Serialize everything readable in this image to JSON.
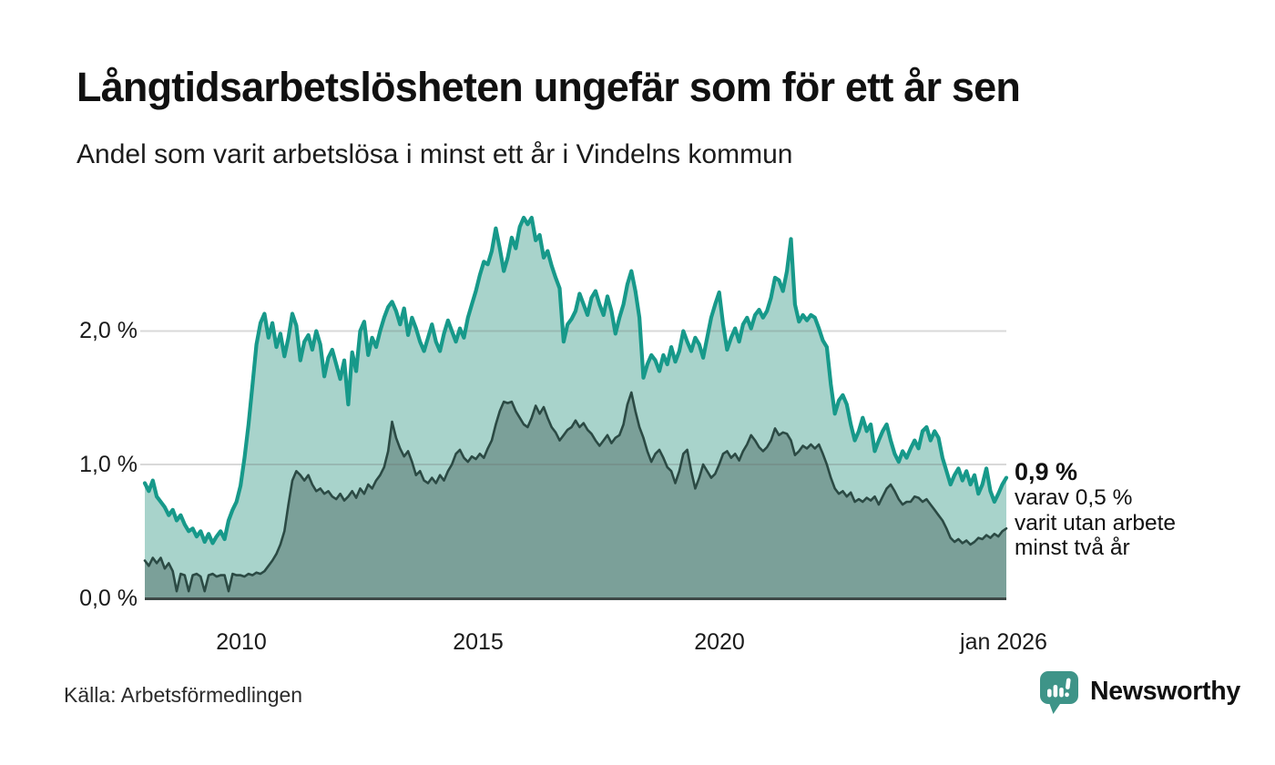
{
  "header": {
    "title": "Långtidsarbetslösheten ungefär som för ett år sen",
    "subtitle": "Andel som varit arbetslösa i minst ett år i Vindelns kommun"
  },
  "colors": {
    "accent_teal": "#17998a",
    "light_fill": "#a8d3cb",
    "dark_line": "#2b4a44",
    "dark_fill": "#7ba099",
    "baseline": "#3d4846",
    "gridline": "rgba(105,105,105,0.25)",
    "brand_teal": "#3e9488"
  },
  "chart_data": {
    "type": "area",
    "title": "Långtidsarbetslösheten ungefär som för ett år sen",
    "subtitle": "Andel som varit arbetslösa i minst ett år i Vindelns kommun",
    "unit": "%",
    "x_start": 2008.0,
    "x_end": 2026.04,
    "ylim": [
      0,
      3
    ],
    "grid": "horizontal",
    "y_gridline_values": [
      1.0,
      2.0
    ],
    "y_tick_labels": [
      "2,0 %",
      "1,0 %",
      "0,0 %"
    ],
    "x_tick_labels": [
      "2010",
      "2015",
      "2020",
      "jan 2026"
    ],
    "x_tick_years": [
      2010,
      2015,
      2020,
      2026.04
    ],
    "legend_position": "none",
    "series": [
      {
        "name": "Andel arbetslösa minst ett år",
        "last_value": 0.9,
        "color": "#17998a",
        "fill": "#a8d3cb",
        "line_width": 4.2,
        "values": [
          0.86,
          0.8,
          0.88,
          0.76,
          0.72,
          0.68,
          0.62,
          0.66,
          0.58,
          0.62,
          0.55,
          0.5,
          0.52,
          0.46,
          0.5,
          0.42,
          0.48,
          0.41,
          0.46,
          0.5,
          0.44,
          0.58,
          0.66,
          0.72,
          0.84,
          1.05,
          1.3,
          1.6,
          1.9,
          2.06,
          2.13,
          1.95,
          2.06,
          1.88,
          1.98,
          1.81,
          1.95,
          2.13,
          2.04,
          1.78,
          1.92,
          1.97,
          1.86,
          2.0,
          1.9,
          1.66,
          1.8,
          1.86,
          1.75,
          1.64,
          1.78,
          1.45,
          1.84,
          1.7,
          2.0,
          2.07,
          1.82,
          1.95,
          1.88,
          2.0,
          2.1,
          2.18,
          2.22,
          2.15,
          2.05,
          2.17,
          1.97,
          2.1,
          2.02,
          1.92,
          1.85,
          1.95,
          2.05,
          1.92,
          1.85,
          1.98,
          2.08,
          2.0,
          1.92,
          2.02,
          1.95,
          2.1,
          2.2,
          2.3,
          2.42,
          2.52,
          2.5,
          2.6,
          2.77,
          2.62,
          2.45,
          2.55,
          2.7,
          2.62,
          2.78,
          2.85,
          2.8,
          2.85,
          2.68,
          2.72,
          2.55,
          2.6,
          2.49,
          2.4,
          2.32,
          1.92,
          2.05,
          2.09,
          2.15,
          2.28,
          2.2,
          2.12,
          2.25,
          2.3,
          2.2,
          2.12,
          2.26,
          2.15,
          1.98,
          2.1,
          2.2,
          2.35,
          2.45,
          2.3,
          2.1,
          1.65,
          1.75,
          1.82,
          1.78,
          1.7,
          1.82,
          1.75,
          1.88,
          1.77,
          1.85,
          2.0,
          1.92,
          1.85,
          1.95,
          1.9,
          1.8,
          1.95,
          2.1,
          2.2,
          2.29,
          2.05,
          1.86,
          1.95,
          2.02,
          1.92,
          2.05,
          2.1,
          2.02,
          2.12,
          2.16,
          2.1,
          2.15,
          2.25,
          2.4,
          2.38,
          2.3,
          2.45,
          2.69,
          2.2,
          2.07,
          2.12,
          2.08,
          2.12,
          2.1,
          2.02,
          1.93,
          1.88,
          1.6,
          1.38,
          1.48,
          1.52,
          1.45,
          1.3,
          1.18,
          1.25,
          1.35,
          1.25,
          1.3,
          1.1,
          1.18,
          1.25,
          1.3,
          1.18,
          1.08,
          1.02,
          1.1,
          1.05,
          1.12,
          1.18,
          1.12,
          1.25,
          1.28,
          1.18,
          1.25,
          1.2,
          1.05,
          0.95,
          0.85,
          0.92,
          0.97,
          0.88,
          0.95,
          0.85,
          0.92,
          0.78,
          0.85,
          0.97,
          0.8,
          0.72,
          0.78,
          0.85,
          0.9
        ]
      },
      {
        "name": "Andel arbetslösa minst två år",
        "last_value": 0.5,
        "color": "#2b4a44",
        "fill": "#7ba099",
        "line_width": 2.6,
        "values": [
          0.28,
          0.24,
          0.3,
          0.26,
          0.3,
          0.22,
          0.26,
          0.2,
          0.05,
          0.18,
          0.17,
          0.05,
          0.17,
          0.18,
          0.16,
          0.05,
          0.17,
          0.18,
          0.16,
          0.17,
          0.17,
          0.05,
          0.18,
          0.17,
          0.17,
          0.16,
          0.18,
          0.17,
          0.19,
          0.18,
          0.2,
          0.24,
          0.28,
          0.33,
          0.4,
          0.5,
          0.7,
          0.88,
          0.95,
          0.92,
          0.88,
          0.92,
          0.85,
          0.8,
          0.82,
          0.78,
          0.8,
          0.76,
          0.74,
          0.78,
          0.73,
          0.76,
          0.8,
          0.75,
          0.82,
          0.78,
          0.85,
          0.82,
          0.88,
          0.92,
          0.98,
          1.1,
          1.32,
          1.2,
          1.12,
          1.06,
          1.1,
          1.02,
          0.92,
          0.95,
          0.88,
          0.86,
          0.9,
          0.86,
          0.92,
          0.88,
          0.95,
          1.0,
          1.08,
          1.11,
          1.05,
          1.02,
          1.06,
          1.04,
          1.08,
          1.05,
          1.12,
          1.18,
          1.3,
          1.4,
          1.47,
          1.46,
          1.47,
          1.4,
          1.35,
          1.3,
          1.28,
          1.35,
          1.44,
          1.38,
          1.43,
          1.35,
          1.28,
          1.24,
          1.18,
          1.22,
          1.26,
          1.28,
          1.33,
          1.28,
          1.31,
          1.26,
          1.23,
          1.18,
          1.14,
          1.18,
          1.22,
          1.16,
          1.2,
          1.22,
          1.3,
          1.45,
          1.54,
          1.4,
          1.28,
          1.2,
          1.1,
          1.02,
          1.08,
          1.11,
          1.05,
          0.98,
          0.95,
          0.86,
          0.95,
          1.08,
          1.11,
          0.95,
          0.82,
          0.9,
          1.0,
          0.95,
          0.9,
          0.93,
          1.0,
          1.08,
          1.1,
          1.05,
          1.08,
          1.03,
          1.1,
          1.15,
          1.22,
          1.18,
          1.13,
          1.1,
          1.13,
          1.18,
          1.27,
          1.22,
          1.24,
          1.23,
          1.18,
          1.07,
          1.1,
          1.14,
          1.12,
          1.15,
          1.12,
          1.15,
          1.08,
          1.0,
          0.9,
          0.82,
          0.78,
          0.8,
          0.76,
          0.79,
          0.72,
          0.74,
          0.72,
          0.75,
          0.73,
          0.76,
          0.7,
          0.76,
          0.82,
          0.85,
          0.8,
          0.74,
          0.7,
          0.72,
          0.72,
          0.76,
          0.75,
          0.72,
          0.74,
          0.7,
          0.66,
          0.62,
          0.58,
          0.52,
          0.45,
          0.42,
          0.44,
          0.41,
          0.43,
          0.4,
          0.42,
          0.45,
          0.44,
          0.47,
          0.45,
          0.48,
          0.46,
          0.5,
          0.52
        ]
      }
    ],
    "annotation": {
      "headline": "0,9 %",
      "lines": [
        "varav 0,5 %",
        "varit utan arbete",
        "minst två år"
      ]
    }
  },
  "footer": {
    "source": "Källa: Arbetsförmedlingen",
    "brand_name": "Newsworthy"
  }
}
